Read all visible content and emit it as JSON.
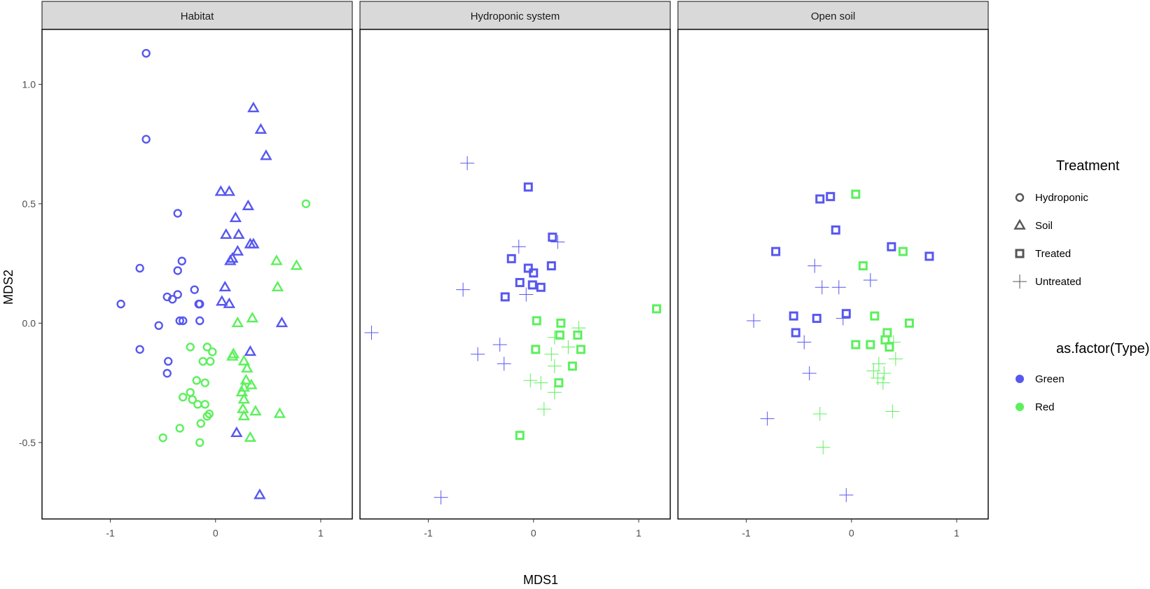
{
  "chart_data": {
    "type": "scatter",
    "xlabel": "MDS1",
    "ylabel": "MDS2",
    "xlim": [
      -1.65,
      1.3
    ],
    "ylim": [
      -0.82,
      1.23
    ],
    "x_ticks": [
      -1,
      0,
      1
    ],
    "x_tick_labels": [
      "-1",
      "0",
      "1"
    ],
    "y_ticks": [
      -0.5,
      0.0,
      0.5,
      1.0
    ],
    "y_tick_labels": [
      "-0.5",
      "0.0",
      "0.5",
      "1.0"
    ],
    "grid": false,
    "colors": {
      "Green": "#5757f0",
      "Red": "#5cf05c"
    },
    "legend": {
      "placement": "right",
      "shape_title": "Treatment",
      "shape_entries": [
        {
          "label": "Hydroponic",
          "shape": "circle"
        },
        {
          "label": "Soil",
          "shape": "triangle"
        },
        {
          "label": "Treated",
          "shape": "square"
        },
        {
          "label": "Untreated",
          "shape": "plus"
        }
      ],
      "color_title": "as.factor(Type)",
      "color_entries": [
        {
          "label": "Green",
          "color": "#5757f0"
        },
        {
          "label": "Red",
          "color": "#5cf05c"
        }
      ]
    },
    "panels": [
      {
        "title": "Habitat",
        "series": [
          {
            "treatment": "Hydroponic",
            "type": "Green",
            "points": [
              [
                -0.66,
                1.13
              ],
              [
                -0.66,
                0.77
              ],
              [
                -0.72,
                0.23
              ],
              [
                -0.9,
                0.08
              ],
              [
                -0.36,
                0.46
              ],
              [
                -0.36,
                0.22
              ],
              [
                -0.32,
                0.26
              ],
              [
                -0.46,
                0.11
              ],
              [
                -0.41,
                0.1
              ],
              [
                -0.36,
                0.12
              ],
              [
                -0.2,
                0.14
              ],
              [
                -0.16,
                0.08
              ],
              [
                -0.15,
                0.08
              ],
              [
                -0.15,
                0.01
              ],
              [
                -0.34,
                0.01
              ],
              [
                -0.31,
                0.01
              ],
              [
                -0.54,
                -0.01
              ],
              [
                -0.72,
                -0.11
              ],
              [
                -0.45,
                -0.16
              ],
              [
                -0.46,
                -0.21
              ]
            ]
          },
          {
            "treatment": "Hydroponic",
            "type": "Red",
            "points": [
              [
                0.86,
                0.5
              ],
              [
                -0.24,
                -0.1
              ],
              [
                -0.08,
                -0.1
              ],
              [
                -0.03,
                -0.12
              ],
              [
                -0.12,
                -0.16
              ],
              [
                -0.05,
                -0.16
              ],
              [
                -0.18,
                -0.24
              ],
              [
                -0.1,
                -0.25
              ],
              [
                -0.24,
                -0.29
              ],
              [
                -0.31,
                -0.31
              ],
              [
                -0.22,
                -0.32
              ],
              [
                -0.17,
                -0.34
              ],
              [
                -0.1,
                -0.34
              ],
              [
                -0.06,
                -0.38
              ],
              [
                -0.08,
                -0.39
              ],
              [
                -0.14,
                -0.42
              ],
              [
                -0.34,
                -0.44
              ],
              [
                -0.5,
                -0.48
              ],
              [
                -0.15,
                -0.5
              ]
            ]
          },
          {
            "treatment": "Soil",
            "type": "Green",
            "points": [
              [
                0.36,
                0.9
              ],
              [
                0.43,
                0.81
              ],
              [
                0.48,
                0.7
              ],
              [
                0.05,
                0.55
              ],
              [
                0.13,
                0.55
              ],
              [
                0.31,
                0.49
              ],
              [
                0.19,
                0.44
              ],
              [
                0.1,
                0.37
              ],
              [
                0.22,
                0.37
              ],
              [
                0.33,
                0.33
              ],
              [
                0.36,
                0.33
              ],
              [
                0.21,
                0.3
              ],
              [
                0.14,
                0.26
              ],
              [
                0.16,
                0.27
              ],
              [
                0.09,
                0.15
              ],
              [
                0.06,
                0.09
              ],
              [
                0.13,
                0.08
              ],
              [
                0.63,
                0.0
              ],
              [
                0.33,
                -0.12
              ],
              [
                0.2,
                -0.46
              ],
              [
                0.42,
                -0.72
              ]
            ]
          },
          {
            "treatment": "Soil",
            "type": "Red",
            "points": [
              [
                0.58,
                0.26
              ],
              [
                0.77,
                0.24
              ],
              [
                0.59,
                0.15
              ],
              [
                0.21,
                0.0
              ],
              [
                0.35,
                0.02
              ],
              [
                0.17,
                -0.13
              ],
              [
                0.16,
                -0.14
              ],
              [
                0.27,
                -0.16
              ],
              [
                0.3,
                -0.19
              ],
              [
                0.29,
                -0.24
              ],
              [
                0.34,
                -0.26
              ],
              [
                0.27,
                -0.27
              ],
              [
                0.25,
                -0.29
              ],
              [
                0.27,
                -0.32
              ],
              [
                0.26,
                -0.36
              ],
              [
                0.38,
                -0.37
              ],
              [
                0.27,
                -0.39
              ],
              [
                0.61,
                -0.38
              ],
              [
                0.33,
                -0.48
              ]
            ]
          }
        ]
      },
      {
        "title": "Hydroponic system",
        "series": [
          {
            "treatment": "Treated",
            "type": "Green",
            "points": [
              [
                -0.05,
                0.57
              ],
              [
                0.18,
                0.36
              ],
              [
                -0.21,
                0.27
              ],
              [
                0.17,
                0.24
              ],
              [
                -0.05,
                0.23
              ],
              [
                0.0,
                0.21
              ],
              [
                -0.13,
                0.17
              ],
              [
                -0.01,
                0.16
              ],
              [
                0.07,
                0.15
              ],
              [
                -0.27,
                0.11
              ]
            ]
          },
          {
            "treatment": "Treated",
            "type": "Red",
            "points": [
              [
                1.17,
                0.06
              ],
              [
                0.03,
                0.01
              ],
              [
                0.26,
                0.0
              ],
              [
                0.25,
                -0.05
              ],
              [
                0.42,
                -0.05
              ],
              [
                0.02,
                -0.11
              ],
              [
                0.45,
                -0.11
              ],
              [
                0.37,
                -0.18
              ],
              [
                0.24,
                -0.25
              ],
              [
                -0.13,
                -0.47
              ]
            ]
          },
          {
            "treatment": "Untreated",
            "type": "Green",
            "points": [
              [
                -0.63,
                0.67
              ],
              [
                -0.14,
                0.32
              ],
              [
                0.23,
                0.34
              ],
              [
                -0.67,
                0.14
              ],
              [
                -0.07,
                0.12
              ],
              [
                -1.54,
                -0.04
              ],
              [
                -0.32,
                -0.09
              ],
              [
                -0.53,
                -0.13
              ],
              [
                -0.28,
                -0.17
              ],
              [
                -0.88,
                -0.73
              ]
            ]
          },
          {
            "treatment": "Untreated",
            "type": "Red",
            "points": [
              [
                0.43,
                -0.02
              ],
              [
                0.2,
                -0.06
              ],
              [
                0.33,
                -0.1
              ],
              [
                0.17,
                -0.13
              ],
              [
                0.2,
                -0.18
              ],
              [
                -0.03,
                -0.24
              ],
              [
                0.07,
                -0.25
              ],
              [
                0.2,
                -0.29
              ],
              [
                0.1,
                -0.36
              ]
            ]
          }
        ]
      },
      {
        "title": "Open soil",
        "series": [
          {
            "treatment": "Treated",
            "type": "Green",
            "points": [
              [
                -0.3,
                0.52
              ],
              [
                -0.2,
                0.53
              ],
              [
                -0.15,
                0.39
              ],
              [
                0.38,
                0.32
              ],
              [
                0.74,
                0.28
              ],
              [
                -0.72,
                0.3
              ],
              [
                -0.55,
                0.03
              ],
              [
                -0.33,
                0.02
              ],
              [
                -0.05,
                0.04
              ],
              [
                -0.53,
                -0.04
              ]
            ]
          },
          {
            "treatment": "Treated",
            "type": "Red",
            "points": [
              [
                0.04,
                0.54
              ],
              [
                0.49,
                0.3
              ],
              [
                0.11,
                0.24
              ],
              [
                0.22,
                0.03
              ],
              [
                0.55,
                0.0
              ],
              [
                0.34,
                -0.04
              ],
              [
                0.32,
                -0.07
              ],
              [
                0.04,
                -0.09
              ],
              [
                0.18,
                -0.09
              ],
              [
                0.36,
                -0.1
              ]
            ]
          },
          {
            "treatment": "Untreated",
            "type": "Green",
            "points": [
              [
                -0.35,
                0.24
              ],
              [
                -0.28,
                0.15
              ],
              [
                -0.12,
                0.15
              ],
              [
                0.18,
                0.18
              ],
              [
                -0.93,
                0.01
              ],
              [
                -0.08,
                0.02
              ],
              [
                -0.45,
                -0.08
              ],
              [
                -0.4,
                -0.21
              ],
              [
                -0.8,
                -0.4
              ],
              [
                -0.05,
                -0.72
              ]
            ]
          },
          {
            "treatment": "Untreated",
            "type": "Red",
            "points": [
              [
                0.4,
                -0.08
              ],
              [
                0.42,
                -0.15
              ],
              [
                0.26,
                -0.17
              ],
              [
                0.21,
                -0.2
              ],
              [
                0.31,
                -0.21
              ],
              [
                0.25,
                -0.23
              ],
              [
                0.3,
                -0.25
              ],
              [
                0.39,
                -0.37
              ],
              [
                -0.3,
                -0.38
              ],
              [
                -0.27,
                -0.52
              ]
            ]
          }
        ]
      }
    ]
  }
}
